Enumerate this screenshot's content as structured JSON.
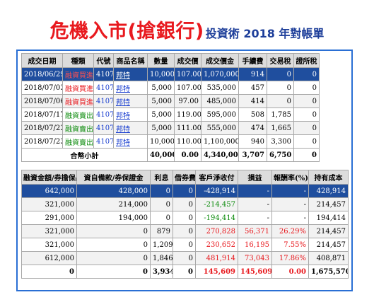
{
  "title": {
    "main": "危機入市(搶銀行)",
    "sub": "投資術 2018 年對帳單"
  },
  "trades": {
    "headers": [
      "成交日期",
      "種類",
      "代號",
      "商品名稱",
      "數量",
      "成交價",
      "成交價金",
      "手續費",
      "交易稅",
      "證所稅"
    ],
    "rows": [
      {
        "date": "2018/06/29",
        "type": "融資買進",
        "code": "4107",
        "name": "邦特",
        "qty": "10,000",
        "price": "107.00",
        "amount": "1,070,000",
        "fee": "914",
        "tax": "0",
        "cgt": "0"
      },
      {
        "date": "2018/07/03",
        "type": "融資買進",
        "code": "4107",
        "name": "邦特",
        "qty": "5,000",
        "price": "107.00",
        "amount": "535,000",
        "fee": "457",
        "tax": "0",
        "cgt": "0"
      },
      {
        "date": "2018/07/06",
        "type": "融資買進",
        "code": "4107",
        "name": "邦特",
        "qty": "5,000",
        "price": "97.00",
        "amount": "485,000",
        "fee": "414",
        "tax": "0",
        "cgt": "0"
      },
      {
        "date": "2018/07/17",
        "type": "融資賣出",
        "code": "4107",
        "name": "邦特",
        "qty": "5,000",
        "price": "119.00",
        "amount": "595,000",
        "fee": "508",
        "tax": "1,785",
        "cgt": "0"
      },
      {
        "date": "2018/07/23",
        "type": "融資賣出",
        "code": "4107",
        "name": "邦特",
        "qty": "5,000",
        "price": "111.00",
        "amount": "555,000",
        "fee": "474",
        "tax": "1,665",
        "cgt": "0"
      },
      {
        "date": "2018/07/23",
        "type": "融資賣出",
        "code": "4107",
        "name": "邦特",
        "qty": "10,000",
        "price": "110.00",
        "amount": "1,100,000",
        "fee": "940",
        "tax": "3,300",
        "cgt": "0"
      }
    ],
    "total": {
      "label": "合幣小計",
      "qty": "40,000",
      "price": "0.00",
      "amount": "4,340,000",
      "fee": "3,707",
      "tax": "6,750",
      "cgt": "0"
    }
  },
  "settle": {
    "headers": [
      "融資金額/券擔保品",
      "資自備款/券保證金",
      "利息",
      "借券費",
      "客戶淨收付",
      "損益",
      "報酬率(%)",
      "持有成本"
    ],
    "rows": [
      {
        "a": "642,000",
        "b": "428,000",
        "c": "0",
        "d": "0",
        "e": "-428,914",
        "f": "-",
        "g": "-",
        "h": "428,914"
      },
      {
        "a": "321,000",
        "b": "214,000",
        "c": "0",
        "d": "0",
        "e": "-214,457",
        "f": "-",
        "g": "-",
        "h": "214,457"
      },
      {
        "a": "291,000",
        "b": "194,000",
        "c": "0",
        "d": "0",
        "e": "-194,414",
        "f": "-",
        "g": "-",
        "h": "194,414"
      },
      {
        "a": "321,000",
        "b": "0",
        "c": "879",
        "d": "0",
        "e": "270,828",
        "f": "56,371",
        "g": "26.29%",
        "h": "214,457"
      },
      {
        "a": "321,000",
        "b": "0",
        "c": "1,209",
        "d": "0",
        "e": "230,652",
        "f": "16,195",
        "g": "7.55%",
        "h": "214,457"
      },
      {
        "a": "612,000",
        "b": "0",
        "c": "1,846",
        "d": "0",
        "e": "481,914",
        "f": "73,043",
        "g": "17.86%",
        "h": "408,871"
      }
    ],
    "total": {
      "a": "0",
      "b": "0",
      "c": "3,934",
      "d": "0",
      "e": "145,609",
      "f": "145,609",
      "g": "0.00",
      "h": "1,675,570"
    }
  },
  "colors": {
    "title_red": "#e8191e",
    "title_blue": "#1e3f9a",
    "frame": "#2a6fd4",
    "selected_row": "#1f4e9e",
    "gain_red": "#e8191e",
    "loss_green": "#0a8a0a"
  }
}
